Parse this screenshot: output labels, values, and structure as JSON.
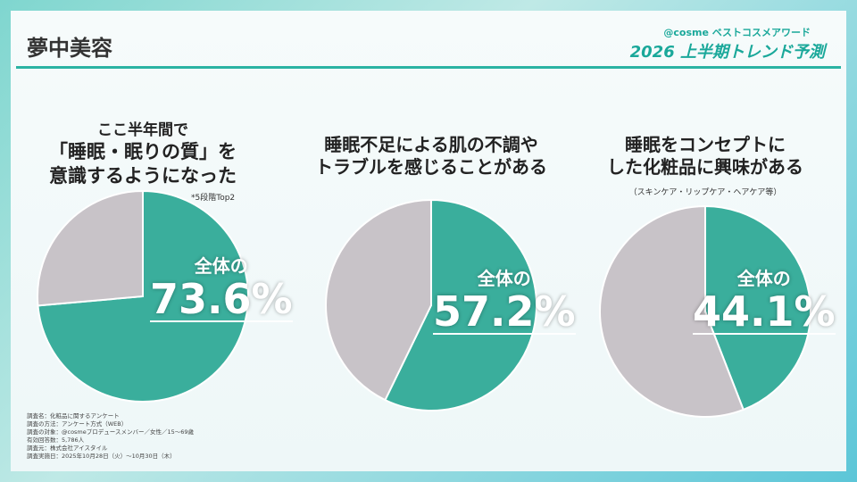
{
  "header": {
    "title": "夢中美容",
    "brand_line": "@cosme ベストコスメアワード",
    "brand_title": "2026 上半期トレンド予測"
  },
  "charts_text": [
    {
      "question": [
        "ここ半年間で",
        "「睡眠・眠りの質」を",
        "意識するようになった"
      ],
      "note": "*5段階Top2",
      "label": "全体の",
      "value_text": "73.6%"
    },
    {
      "question": [
        "睡眠不足による肌の不調や",
        "トラブルを感じることがある"
      ],
      "note": "",
      "label": "全体の",
      "value_text": "57.2%"
    },
    {
      "question": [
        "睡眠をコンセプトに",
        "した化粧品に興味がある"
      ],
      "note": "（スキンケア・リップケア・ヘアケア等）",
      "label": "全体の",
      "value_text": "44.1%"
    }
  ],
  "chart_data": [
    {
      "type": "pie",
      "values": [
        73.6,
        26.4
      ],
      "colors": [
        "#3aae9c",
        "#c8c3c8"
      ]
    },
    {
      "type": "pie",
      "values": [
        57.2,
        42.8
      ],
      "colors": [
        "#3aae9c",
        "#c8c3c8"
      ]
    },
    {
      "type": "pie",
      "values": [
        44.1,
        55.9
      ],
      "colors": [
        "#3aae9c",
        "#c8c3c8"
      ]
    }
  ],
  "survey": [
    "調査名：化粧品に関するアンケート",
    "調査の方法：アンケート方式（WEB）",
    "調査の対象：@cosmeプロデュースメンバー／女性／15～69歳",
    "有効回答数：5,786人",
    "調査元：株式会社アイスタイル",
    "調査実施日：2025年10月28日（火）～10月30日（木）"
  ]
}
